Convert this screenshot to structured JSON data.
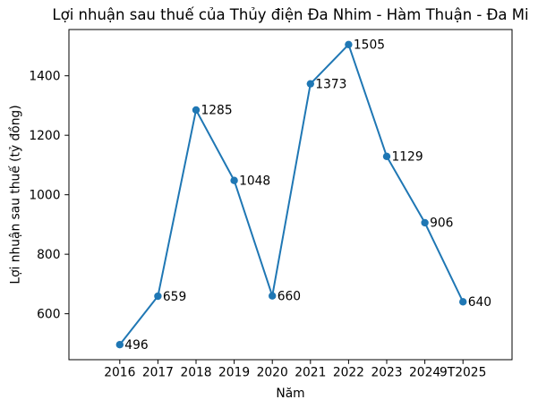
{
  "chart_data": {
    "type": "line",
    "title": "Lợi nhuận sau thuế của Thủy điện Đa Nhim - Hàm Thuận - Đa Mi",
    "xlabel": "Năm",
    "ylabel": "Lợi nhuận sau thuế (tỷ đồng)",
    "categories": [
      "2016",
      "2017",
      "2018",
      "2019",
      "2020",
      "2021",
      "2022",
      "2023",
      "2024",
      "9T2025"
    ],
    "values": [
      496,
      659,
      1285,
      1048,
      660,
      1373,
      1505,
      1129,
      906,
      640
    ],
    "data_labels": [
      "496",
      "659",
      "1285",
      "1048",
      "660",
      "1373",
      "1505",
      "1129",
      "906",
      "640"
    ],
    "yticks": [
      600,
      800,
      1000,
      1200,
      1400
    ],
    "ylim": [
      445.5,
      1555.5
    ],
    "grid": false,
    "legend": "none",
    "marker": "circle",
    "colors": {
      "line": "#1f77b4",
      "marker": "#1f77b4",
      "text": "#000000",
      "spine": "#000000"
    }
  }
}
